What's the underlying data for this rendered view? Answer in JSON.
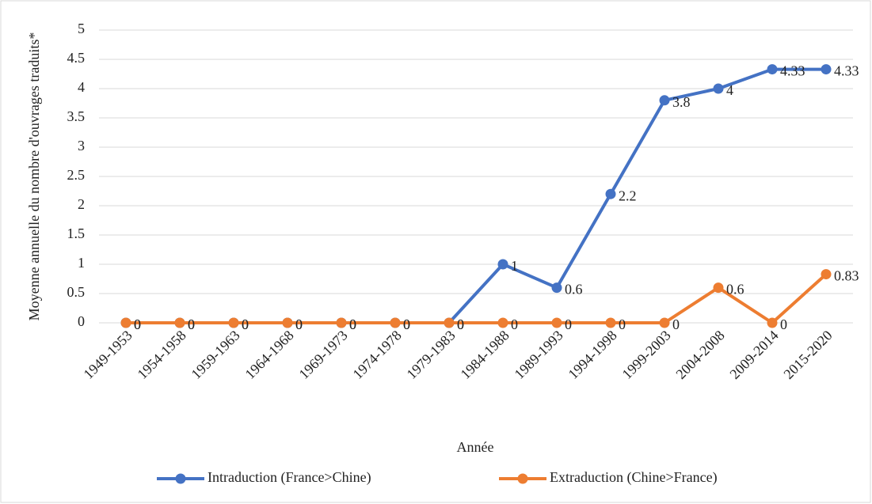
{
  "chart_data": {
    "type": "line",
    "x_label": "Année",
    "y_label": "Moyenne annuelle du nombre d'ouvrages traduits*",
    "categories": [
      "1949-1953",
      "1954-1958",
      "1959-1963",
      "1964-1968",
      "1969-1973",
      "1974-1978",
      "1979-1983",
      "1984-1988",
      "1989-1993",
      "1994-1998",
      "1999-2003",
      "2004-2008",
      "2009-2014",
      "2015-2020"
    ],
    "series": [
      {
        "name": "Intraduction (France>Chine)",
        "color": "#4472c4",
        "values": [
          0,
          0,
          0,
          0,
          0,
          0,
          0,
          1,
          0.6,
          2.2,
          3.8,
          4,
          4.33,
          4.33
        ]
      },
      {
        "name": "Extraduction (Chine>France)",
        "color": "#ed7d31",
        "values": [
          0,
          0,
          0,
          0,
          0,
          0,
          0,
          0,
          0,
          0,
          0,
          0.6,
          0,
          0.83
        ]
      }
    ],
    "ylim": [
      0,
      5
    ],
    "yticks": [
      0,
      0.5,
      1,
      1.5,
      2,
      2.5,
      3,
      3.5,
      4,
      4.5,
      5
    ],
    "grid": true,
    "legend": "bottom"
  }
}
